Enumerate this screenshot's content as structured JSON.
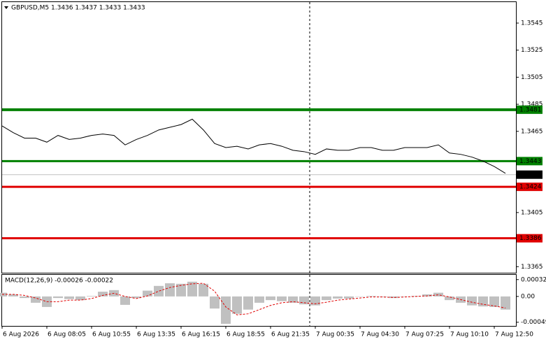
{
  "chart_data": [
    {
      "type": "line",
      "title": "GBPUSD,M5  1.3436 1.3437 1.3433 1.3433",
      "categories": [
        "6 Aug 2026",
        null,
        null,
        null,
        "6 Aug 08:05",
        null,
        null,
        null,
        "6 Aug 10:55",
        null,
        null,
        null,
        "6 Aug 13:35",
        null,
        null,
        null,
        "6 Aug 16:15",
        null,
        null,
        null,
        "6 Aug 18:55",
        null,
        null,
        null,
        "6 Aug 21:35",
        null,
        null,
        null,
        "7 Aug 00:35",
        null,
        null,
        null,
        "7 Aug 04:30",
        null,
        null,
        null,
        "7 Aug 07:25",
        null,
        null,
        null,
        "7 Aug 10:10",
        null,
        null,
        null,
        "7 Aug 12:50",
        null
      ],
      "values": [
        1.3469,
        1.3464,
        1.346,
        1.346,
        1.3457,
        1.3462,
        1.3459,
        1.346,
        1.3462,
        1.3463,
        1.3462,
        1.3455,
        1.3459,
        1.3462,
        1.3466,
        1.3468,
        1.347,
        1.3474,
        1.3466,
        1.3456,
        1.3453,
        1.3454,
        1.3452,
        1.3455,
        1.3456,
        1.3454,
        1.3451,
        1.345,
        1.3448,
        1.3452,
        1.3451,
        1.3451,
        1.3453,
        1.3453,
        1.3451,
        1.3451,
        1.3453,
        1.3453,
        1.3453,
        1.3455,
        1.3449,
        1.3448,
        1.3446,
        1.3443,
        1.3439,
        1.3434
      ],
      "color": "#000000",
      "ylim": [
        1.33605,
        1.35605
      ],
      "yticks": [
        1.3545,
        1.3525,
        1.3505,
        1.3485,
        1.3465,
        1.3405,
        1.3365
      ],
      "levels": [
        {
          "value": 1.3481,
          "color": "#008000"
        },
        {
          "value": 1.3443,
          "color": "#008000"
        },
        {
          "value": 1.3424,
          "color": "#e00000"
        },
        {
          "value": 1.3386,
          "color": "#e00000"
        }
      ],
      "last": {
        "value": 1.3433,
        "color": "#000000"
      }
    },
    {
      "type": "macd",
      "title": "MACD(12,26,9) -0.00026 -0.00022",
      "histogram": [
        7e-05,
        4e-05,
        -3e-05,
        -0.00012,
        -0.0002,
        -3e-05,
        -5e-05,
        -7e-05,
        1e-05,
        9e-05,
        0.00012,
        -0.00016,
        -3e-05,
        0.00011,
        0.0002,
        0.00025,
        0.00024,
        0.00028,
        0.00024,
        -0.00023,
        -0.00052,
        -0.00033,
        -0.00025,
        -0.00012,
        -7e-05,
        -9e-05,
        -0.00012,
        -0.00015,
        -0.00017,
        -7e-05,
        -4e-05,
        -4e-05,
        0,
        1e-05,
        -1e-05,
        -3e-05,
        0,
        1e-05,
        4e-05,
        7e-05,
        -7e-05,
        -0.00012,
        -0.00017,
        -0.00019,
        -0.0002,
        -0.00025
      ],
      "histogram_color": "#c0c0c0",
      "signal": [
        4e-05,
        4e-05,
        2e-05,
        -3e-05,
        -0.0001,
        -0.0001,
        -7e-05,
        -7e-05,
        -4e-05,
        2e-05,
        6e-05,
        0,
        -4e-05,
        1e-05,
        0.0001,
        0.00017,
        0.00021,
        0.00024,
        0.00025,
        0.0001,
        -0.0002,
        -0.00035,
        -0.00033,
        -0.00025,
        -0.00017,
        -0.00012,
        -0.0001,
        -0.00012,
        -0.00014,
        -0.00011,
        -7e-05,
        -5e-05,
        -3e-05,
        -1e-05,
        -1e-05,
        -2e-05,
        -1e-05,
        0,
        1e-05,
        3e-05,
        -1e-05,
        -6e-05,
        -0.00011,
        -0.00015,
        -0.00018,
        -0.00022
      ],
      "signal_color": "#e00000",
      "ylim": [
        -0.00056,
        0.00041
      ],
      "yticks": [
        0.00032,
        {
          "value": 0,
          "label": "0.00"
        },
        -0.00049
      ]
    }
  ]
}
